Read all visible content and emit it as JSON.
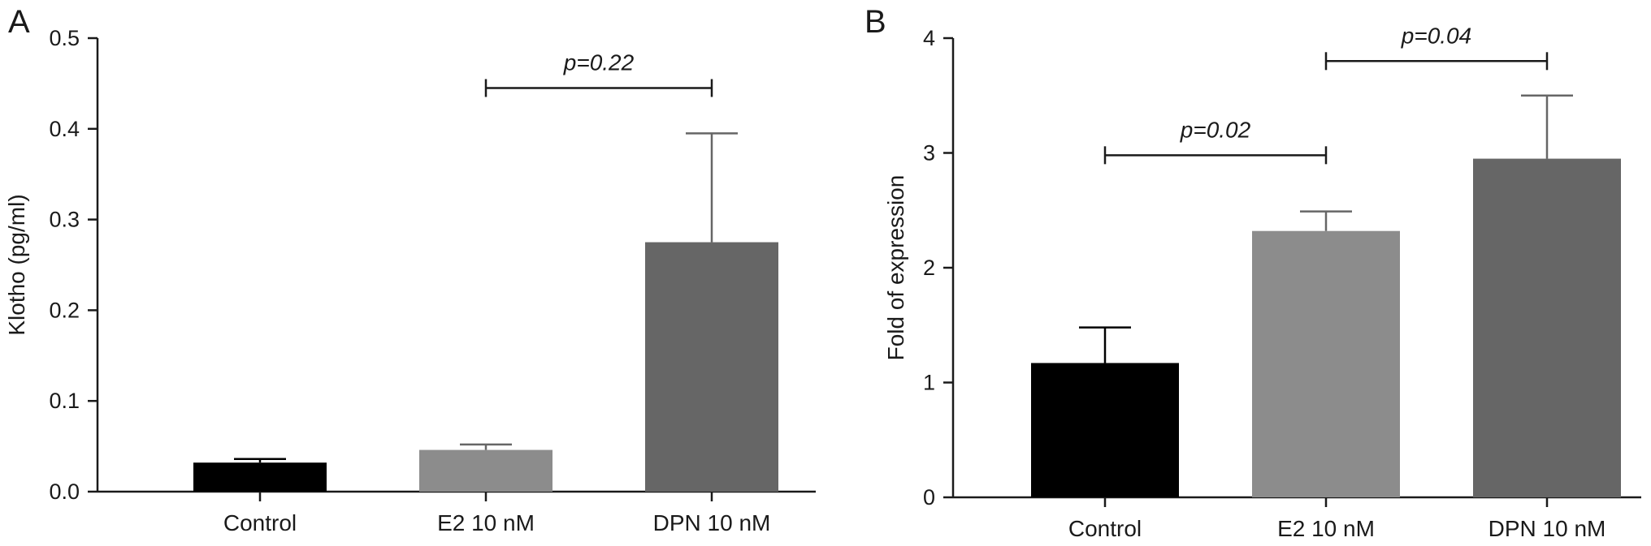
{
  "chart_data": [
    {
      "panel": "A",
      "type": "bar",
      "categories": [
        "Control",
        "E2 10 nM",
        "DPN 10 nM"
      ],
      "values": [
        0.032,
        0.046,
        0.275
      ],
      "errors": [
        0.004,
        0.006,
        0.12
      ],
      "bar_colors": [
        "#000000",
        "#8c8c8c",
        "#666666"
      ],
      "ylabel": "Klotho (pg/ml)",
      "xlabel": "",
      "ylim": [
        0,
        0.5
      ],
      "yticks": [
        "0.0",
        "0.1",
        "0.2",
        "0.3",
        "0.4",
        "0.5"
      ],
      "brackets": [
        {
          "from": 1,
          "to": 2,
          "label": "p=0.22",
          "level": 0.445
        }
      ]
    },
    {
      "panel": "B",
      "type": "bar",
      "categories": [
        "Control",
        "E2 10 nM",
        "DPN 10 nM"
      ],
      "values": [
        1.17,
        2.32,
        2.95
      ],
      "errors": [
        0.31,
        0.17,
        0.55
      ],
      "bar_colors": [
        "#000000",
        "#8c8c8c",
        "#666666"
      ],
      "ylabel": "Fold of expression",
      "xlabel": "",
      "ylim": [
        0,
        4
      ],
      "yticks": [
        "0",
        "1",
        "2",
        "3",
        "4"
      ],
      "brackets": [
        {
          "from": 0,
          "to": 1,
          "label": "p=0.02",
          "level": 2.98
        },
        {
          "from": 1,
          "to": 2,
          "label": "p=0.04",
          "level": 3.8
        }
      ]
    }
  ]
}
